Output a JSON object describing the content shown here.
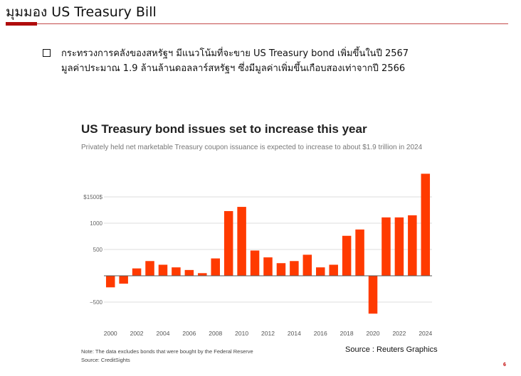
{
  "slide": {
    "title": "มุมมอง US Treasury Bill",
    "bullet_lines": [
      "กระทรวงการคลังของสหรัฐฯ มีแนวโน้มที่จะขาย US Treasury bond เพิ่มขึ้นในปี 2567",
      "มูลค่าประมาณ 1.9 ล้านล้านดอลลาร์สหรัฐฯ  ซึ่งมีมูลค่าเพิ่มขึ้นเกือบสองเท่าจากปี 2566"
    ],
    "source": "Source : Reuters Graphics",
    "page_number": "6"
  },
  "colors": {
    "bar": "#ff3a00",
    "accent": "#b00c0c",
    "rule": "#c44a4a"
  },
  "chart_data": {
    "type": "bar",
    "title": "US Treasury bond issues set to increase this year",
    "subtitle": "Privately held net marketable Treasury coupon issuance is expected to increase to about $1.9 trillion in 2024",
    "categories": [
      "2000",
      "2001",
      "2002",
      "2003",
      "2004",
      "2005",
      "2006",
      "2007",
      "2008",
      "2009",
      "2010",
      "2011",
      "2012",
      "2013",
      "2014",
      "2015",
      "2016",
      "2017",
      "2018",
      "2019",
      "2020",
      "2021",
      "2022",
      "2023",
      "2024"
    ],
    "values": [
      -220,
      -150,
      140,
      280,
      210,
      160,
      110,
      50,
      330,
      1230,
      1310,
      480,
      350,
      240,
      280,
      400,
      160,
      210,
      760,
      880,
      -720,
      1110,
      1110,
      1150,
      1940
    ],
    "x_tick_labels": [
      "2000",
      "2002",
      "2004",
      "2006",
      "2008",
      "2010",
      "2012",
      "2014",
      "2016",
      "2018",
      "2020",
      "2022",
      "2024"
    ],
    "y_ticks": [
      -500,
      500,
      1000,
      1500
    ],
    "y_tick_labels": [
      "−500",
      "500",
      "1000",
      "$1500$"
    ],
    "ylim": [
      -800,
      2000
    ],
    "grid": true,
    "notes": [
      "Note: The data excludes bonds that were bought by the Federal Reserve",
      "Source: CreditSights"
    ]
  }
}
